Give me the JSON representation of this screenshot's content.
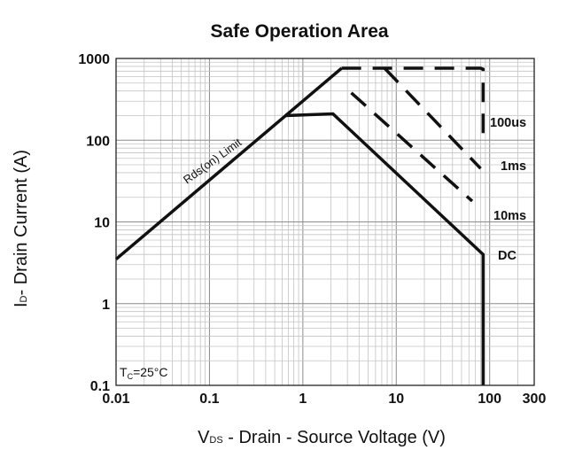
{
  "chart_data": {
    "type": "line",
    "title": "Safe Operation Area",
    "xlabel": {
      "main": "V",
      "sub": "DS",
      "rest": " - Drain - Source Voltage (V)"
    },
    "ylabel": {
      "main": "I",
      "sub": "D",
      "rest": "- Drain Current (A)"
    },
    "x_scale": "log",
    "y_scale": "log",
    "xlim": [
      0.01,
      300
    ],
    "ylim": [
      0.1,
      1000
    ],
    "x_ticks": [
      {
        "value": 0.01,
        "label": "0.01"
      },
      {
        "value": 0.1,
        "label": "0.1"
      },
      {
        "value": 1,
        "label": "1"
      },
      {
        "value": 10,
        "label": "10"
      },
      {
        "value": 100,
        "label": "100"
      },
      {
        "value": 300,
        "label": "300"
      }
    ],
    "y_ticks": [
      {
        "value": 0.1,
        "label": "0.1"
      },
      {
        "value": 1,
        "label": "1"
      },
      {
        "value": 10,
        "label": "10"
      },
      {
        "value": 100,
        "label": "100"
      },
      {
        "value": 1000,
        "label": "1000"
      }
    ],
    "grid": true,
    "series": [
      {
        "label": "Rds(on) Limit",
        "style": "solid",
        "x": [
          0.01,
          2.6
        ],
        "y": [
          3.5,
          760
        ]
      },
      {
        "label": "DC",
        "style": "solid",
        "x": [
          0.65,
          2.1,
          85,
          85
        ],
        "y": [
          200,
          210,
          4,
          0.1
        ]
      },
      {
        "label": "100us",
        "style": "dashed",
        "x": [
          2.6,
          80,
          85,
          85
        ],
        "y": [
          760,
          760,
          740,
          120
        ]
      },
      {
        "label": "1ms",
        "style": "dashed",
        "x": [
          7.5,
          80
        ],
        "y": [
          760,
          45
        ]
      },
      {
        "label": "10ms",
        "style": "dashed",
        "x": [
          3.3,
          65
        ],
        "y": [
          380,
          18
        ]
      }
    ],
    "annotations": {
      "rds": "Rds(on) Limit",
      "cond_t": "T",
      "cond_sub": "C",
      "cond_rest": "=25°C"
    }
  }
}
